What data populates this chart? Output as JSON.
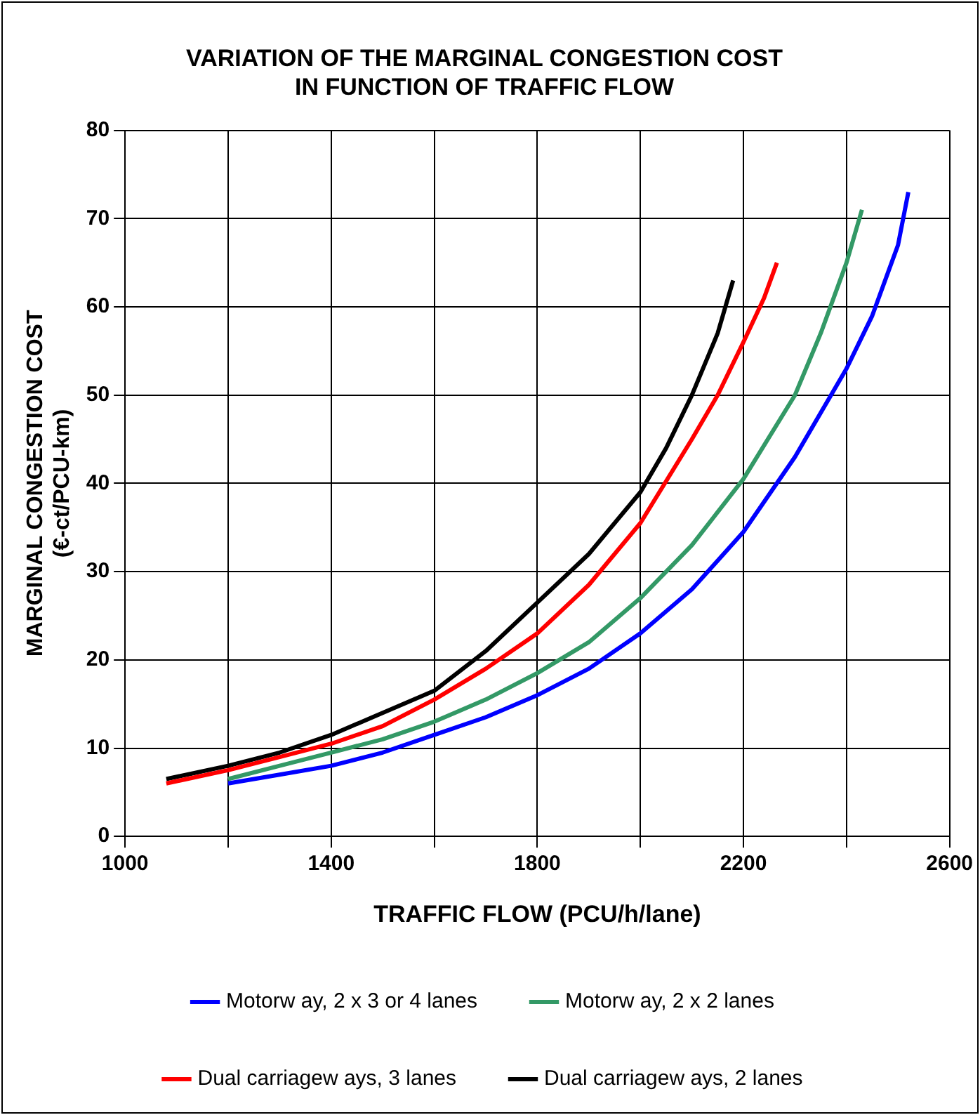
{
  "chart_data": {
    "type": "line",
    "title": "VARIATION OF THE MARGINAL CONGESTION COST\nIN FUNCTION OF TRAFFIC FLOW",
    "xlabel": "TRAFFIC FLOW (PCU/h/lane)",
    "ylabel": "MARGINAL CONGESTION COST\n(€-ct/PCU-km)",
    "xlim": [
      1000,
      2600
    ],
    "xticks": [
      1000,
      {
        "value": 1200,
        "label": null
      },
      1400,
      {
        "value": 1600,
        "label": null
      },
      1800,
      {
        "value": 2000,
        "label": null
      },
      2200,
      {
        "value": 2400,
        "label": null
      },
      2600
    ],
    "ylim": [
      0,
      80
    ],
    "yticks": [
      0,
      10,
      20,
      30,
      40,
      50,
      60,
      70,
      80
    ],
    "grid": true,
    "legend": "bottom",
    "marker": "none",
    "line_style": "solid",
    "series": [
      {
        "name": "Motorw ay, 2 x 3 or 4 lanes",
        "color": "#0000ff",
        "x": [
          1200,
          1300,
          1400,
          1500,
          1600,
          1700,
          1800,
          1900,
          2000,
          2100,
          2200,
          2300,
          2400,
          2450,
          2500,
          2520
        ],
        "values": [
          6,
          7,
          8,
          9.5,
          11.5,
          13.5,
          16,
          19,
          23,
          28,
          34.5,
          43,
          53,
          59,
          67,
          73
        ]
      },
      {
        "name": "Motorw ay, 2 x 2 lanes",
        "color": "#339966",
        "x": [
          1200,
          1300,
          1400,
          1500,
          1600,
          1700,
          1800,
          1900,
          2000,
          2100,
          2200,
          2300,
          2350,
          2400,
          2430
        ],
        "values": [
          6.5,
          8,
          9.5,
          11,
          13,
          15.5,
          18.5,
          22,
          27,
          33,
          40.5,
          50,
          57,
          65,
          71
        ]
      },
      {
        "name": "Dual carriagew ays, 3 lanes",
        "color": "#ff0000",
        "x": [
          1080,
          1200,
          1300,
          1400,
          1500,
          1600,
          1700,
          1800,
          1900,
          2000,
          2100,
          2150,
          2200,
          2240,
          2265
        ],
        "values": [
          6,
          7.5,
          9,
          10.5,
          12.5,
          15.5,
          19,
          23,
          28.5,
          35.5,
          45,
          50,
          56,
          61,
          65
        ]
      },
      {
        "name": "Dual carriagew ays, 2 lanes",
        "color": "#000000",
        "x": [
          1080,
          1200,
          1300,
          1400,
          1500,
          1600,
          1700,
          1800,
          1900,
          2000,
          2050,
          2100,
          2150,
          2180
        ],
        "values": [
          6.5,
          8,
          9.5,
          11.5,
          14,
          16.5,
          21,
          26.5,
          32,
          39,
          44,
          50,
          57,
          63
        ]
      }
    ]
  }
}
